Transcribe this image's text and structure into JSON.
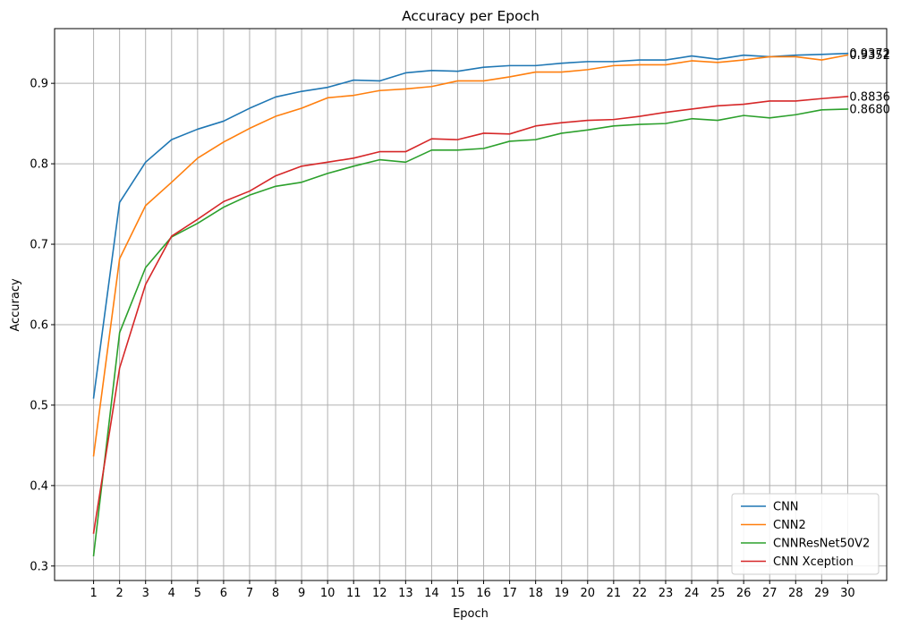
{
  "chart_data": {
    "type": "line",
    "title": "Accuracy per Epoch",
    "xlabel": "Epoch",
    "ylabel": "Accuracy",
    "x": [
      1,
      2,
      3,
      4,
      5,
      6,
      7,
      8,
      9,
      10,
      11,
      12,
      13,
      14,
      15,
      16,
      17,
      18,
      19,
      20,
      21,
      22,
      23,
      24,
      25,
      26,
      27,
      28,
      29,
      30
    ],
    "xlim": [
      -0.5,
      31.5
    ],
    "ylim": [
      0.282,
      0.968
    ],
    "yticks": [
      0.3,
      0.4,
      0.5,
      0.6,
      0.7,
      0.8,
      0.9
    ],
    "ytick_labels": [
      "0.3",
      "0.4",
      "0.5",
      "0.6",
      "0.7",
      "0.8",
      "0.9"
    ],
    "grid": true,
    "legend_position": "lower-right",
    "series": [
      {
        "name": "CNN",
        "color": "#1f77b4",
        "values": [
          0.509,
          0.752,
          0.802,
          0.83,
          0.843,
          0.853,
          0.869,
          0.883,
          0.89,
          0.895,
          0.904,
          0.903,
          0.913,
          0.916,
          0.915,
          0.92,
          0.922,
          0.922,
          0.925,
          0.927,
          0.927,
          0.929,
          0.929,
          0.934,
          0.93,
          0.935,
          0.933,
          0.935,
          0.936,
          0.9372
        ],
        "end_label": "0.9372"
      },
      {
        "name": "CNN2",
        "color": "#ff7f0e",
        "values": [
          0.437,
          0.682,
          0.748,
          0.777,
          0.807,
          0.827,
          0.844,
          0.859,
          0.869,
          0.882,
          0.885,
          0.891,
          0.893,
          0.896,
          0.903,
          0.903,
          0.908,
          0.914,
          0.914,
          0.917,
          0.922,
          0.923,
          0.923,
          0.928,
          0.926,
          0.929,
          0.933,
          0.933,
          0.929,
          0.9352
        ],
        "end_label": "0.9352"
      },
      {
        "name": "CNNResNet50V2",
        "color": "#2ca02c",
        "values": [
          0.313,
          0.59,
          0.671,
          0.709,
          0.726,
          0.746,
          0.761,
          0.772,
          0.777,
          0.788,
          0.797,
          0.805,
          0.802,
          0.817,
          0.817,
          0.819,
          0.828,
          0.83,
          0.838,
          0.842,
          0.847,
          0.849,
          0.85,
          0.856,
          0.854,
          0.86,
          0.857,
          0.861,
          0.867,
          0.868
        ],
        "end_label": "0.8680"
      },
      {
        "name": "CNN Xception",
        "color": "#d62728",
        "values": [
          0.341,
          0.546,
          0.65,
          0.71,
          0.731,
          0.753,
          0.766,
          0.785,
          0.797,
          0.802,
          0.807,
          0.815,
          0.815,
          0.831,
          0.83,
          0.838,
          0.837,
          0.847,
          0.851,
          0.854,
          0.855,
          0.859,
          0.864,
          0.868,
          0.872,
          0.874,
          0.878,
          0.878,
          0.881,
          0.8836
        ],
        "end_label": "0.8836"
      }
    ]
  }
}
